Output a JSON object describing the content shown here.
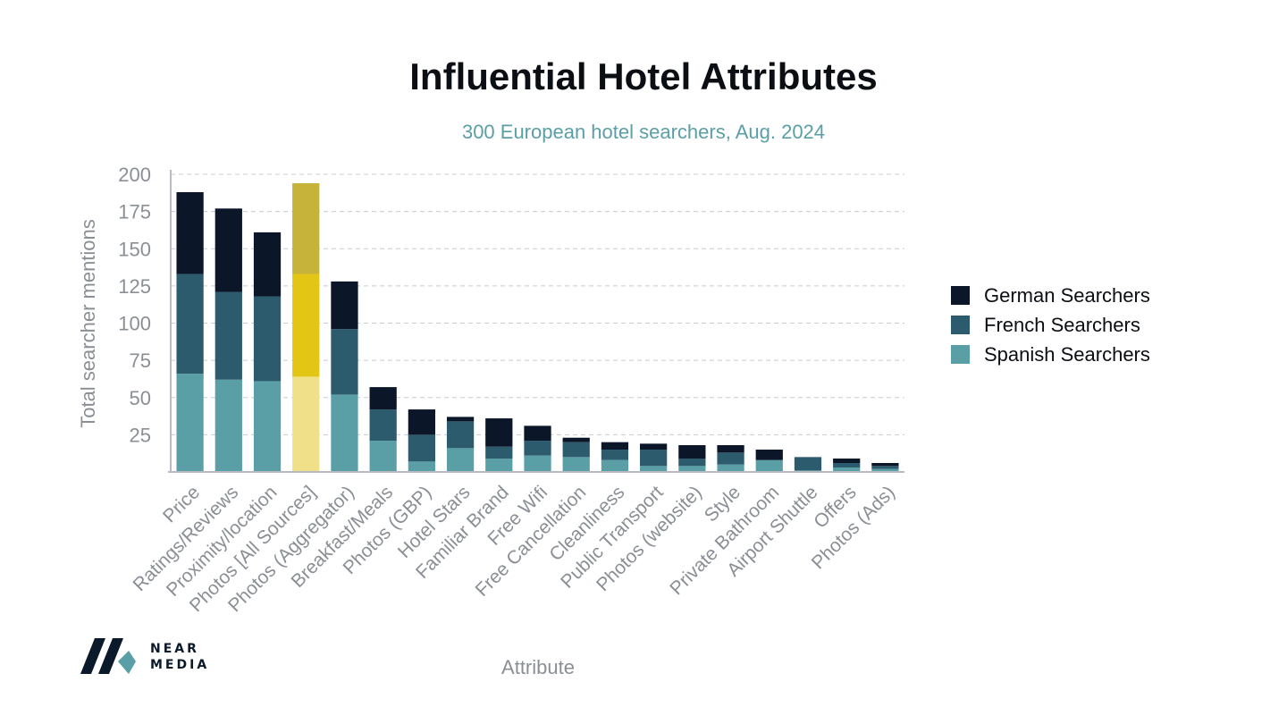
{
  "chart_data": {
    "type": "bar",
    "stacked": true,
    "title": "Influential Hotel Attributes",
    "subtitle": "300 European hotel searchers, Aug. 2024",
    "xlabel": "Attribute",
    "ylabel": "Total searcher mentions",
    "ylim": [
      0,
      200
    ],
    "yticks": [
      "25",
      "50",
      "75",
      "100",
      "125",
      "150",
      "175",
      "200"
    ],
    "grid": true,
    "legend_position": "right",
    "categories": [
      "Price",
      "Ratings/Reviews",
      "Proximity/location",
      "Photos [All Sources]",
      "Photos (Aggregator)",
      "Breakfast/Meals",
      "Photos (GBP)",
      "Hotel Stars",
      "Familiar Brand",
      "Free Wifi",
      "Free Cancellation",
      "Cleanliness",
      "Public Transport",
      "Photos (website)",
      "Style",
      "Private Bathroom",
      "Airport Shuttle",
      "Offers",
      "Photos (Ads)"
    ],
    "highlight_category": "Photos [All Sources]",
    "series": [
      {
        "name": "Spanish Searchers",
        "color": "#5a9fa6",
        "highlight_color": "#f0e08a",
        "values": [
          66,
          62,
          61,
          64,
          52,
          21,
          7,
          16,
          9,
          11,
          10,
          8,
          4,
          4,
          5,
          8,
          1,
          3,
          2
        ]
      },
      {
        "name": "French Searchers",
        "color": "#2d5b6e",
        "highlight_color": "#e3c516",
        "values": [
          67,
          59,
          57,
          69,
          44,
          21,
          18,
          18,
          8,
          10,
          10,
          7,
          11,
          5,
          8,
          0,
          9,
          3,
          2
        ]
      },
      {
        "name": "German Searchers",
        "color": "#0b1628",
        "highlight_color": "#c6b33a",
        "values": [
          55,
          56,
          43,
          61,
          32,
          15,
          17,
          3,
          19,
          10,
          3,
          5,
          4,
          9,
          5,
          7,
          0,
          3,
          2
        ]
      }
    ],
    "legend_order": [
      "German Searchers",
      "French Searchers",
      "Spanish Searchers"
    ]
  },
  "branding": {
    "logo_line1": "NEAR",
    "logo_line2": "MEDIA"
  }
}
